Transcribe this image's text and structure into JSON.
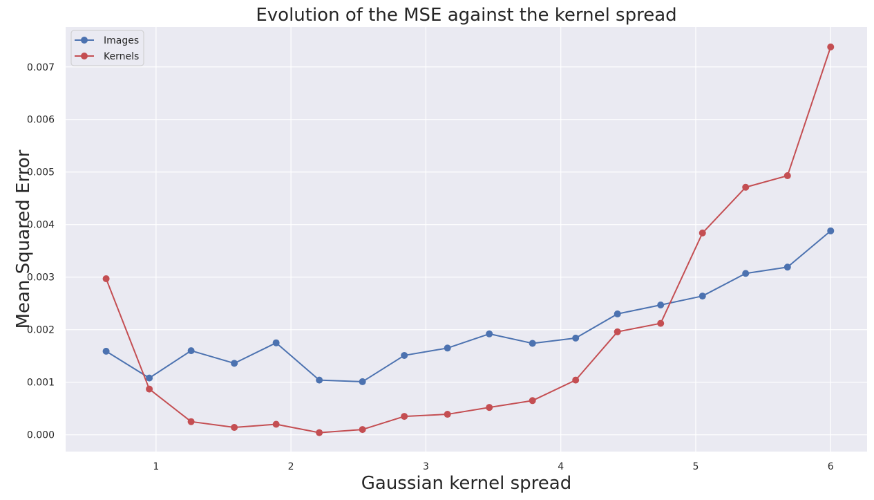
{
  "chart_data": {
    "type": "line",
    "title": "Evolution of the MSE against the kernel spread",
    "xlabel": "Gaussian kernel spread",
    "ylabel": "Mean Squared Error",
    "xlim": [
      0.33,
      6.27
    ],
    "ylim": [
      -0.00032,
      0.00776
    ],
    "xticks": [
      1,
      2,
      3,
      4,
      5,
      6
    ],
    "xtick_labels": [
      "1",
      "2",
      "3",
      "4",
      "5",
      "6"
    ],
    "yticks": [
      0,
      0.001,
      0.002,
      0.003,
      0.004,
      0.005,
      0.006,
      0.007
    ],
    "ytick_labels": [
      "0.000",
      "0.001",
      "0.002",
      "0.003",
      "0.004",
      "0.005",
      "0.006",
      "0.007"
    ],
    "grid": true,
    "background_color": "#EAEAF2",
    "legend_position": "top-left",
    "x": [
      0.63,
      0.95,
      1.26,
      1.58,
      1.89,
      2.21,
      2.53,
      2.84,
      3.16,
      3.47,
      3.79,
      4.11,
      4.42,
      4.74,
      5.05,
      5.37,
      5.68,
      6.0
    ],
    "series": [
      {
        "name": "Images",
        "color": "#4C72B0",
        "values": [
          0.00159,
          0.00108,
          0.0016,
          0.00136,
          0.00175,
          0.00104,
          0.00101,
          0.00151,
          0.00165,
          0.00192,
          0.00174,
          0.00184,
          0.0023,
          0.00247,
          0.00264,
          0.00307,
          0.00319,
          0.00388
        ]
      },
      {
        "name": "Kernels",
        "color": "#C44E52",
        "values": [
          0.00297,
          0.00087,
          0.00025,
          0.00014,
          0.0002,
          4e-05,
          0.0001,
          0.00035,
          0.00039,
          0.00052,
          0.00065,
          0.00104,
          0.00196,
          0.00212,
          0.00384,
          0.00471,
          0.00493,
          0.00738
        ]
      }
    ]
  }
}
